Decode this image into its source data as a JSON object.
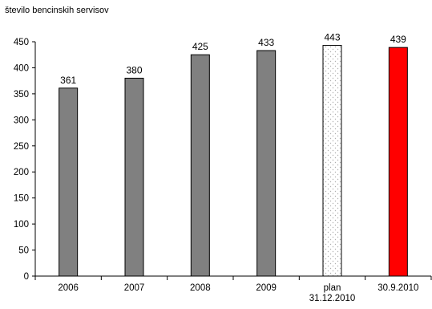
{
  "chart_data": {
    "type": "bar",
    "ylabel": "število bencinskih servisov",
    "xlabel": "",
    "ylim": [
      0,
      450
    ],
    "yticks": [
      0,
      50,
      100,
      150,
      200,
      250,
      300,
      350,
      400,
      450
    ],
    "categories": [
      [
        "2006"
      ],
      [
        "2007"
      ],
      [
        "2008"
      ],
      [
        "2009"
      ],
      [
        "plan",
        "31.12.2010"
      ],
      [
        "30.9.2010"
      ]
    ],
    "values": [
      361,
      380,
      425,
      433,
      443,
      439
    ],
    "bar_styles": [
      "solid",
      "solid",
      "solid",
      "solid",
      "dotted-outline",
      "highlight"
    ],
    "colors": {
      "solid": "#808080",
      "highlight": "#ff0000",
      "dotted_fill": "#ffffff",
      "dotted_pattern": "#b0b0b0",
      "axis": "#000000",
      "bar_stroke": "#000000"
    },
    "grid": false,
    "legend": "none"
  }
}
